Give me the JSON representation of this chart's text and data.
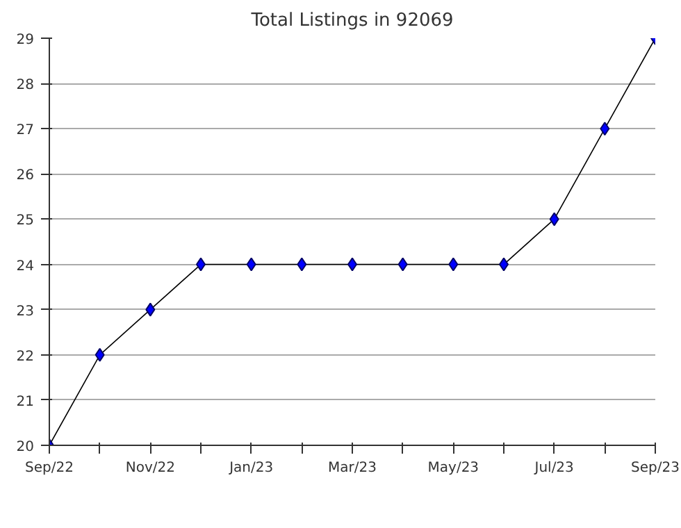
{
  "chart_data": {
    "type": "line",
    "title": "Total Listings in 92069",
    "categories": [
      "Sep/22",
      null,
      "Nov/22",
      null,
      "Jan/23",
      null,
      "Mar/23",
      null,
      "May/23",
      null,
      "Jul/23",
      null,
      "Sep/23"
    ],
    "series": [
      {
        "color": "#0000ff",
        "values": [
          20,
          22,
          23,
          24,
          24,
          24,
          24,
          24,
          24,
          24,
          25,
          27,
          29
        ]
      }
    ],
    "ylim": [
      20,
      29
    ],
    "yticks": [
      20,
      21,
      22,
      23,
      24,
      25,
      26,
      27,
      28,
      29
    ],
    "grid": "y",
    "marker": "diamond",
    "line_style": "solid"
  }
}
